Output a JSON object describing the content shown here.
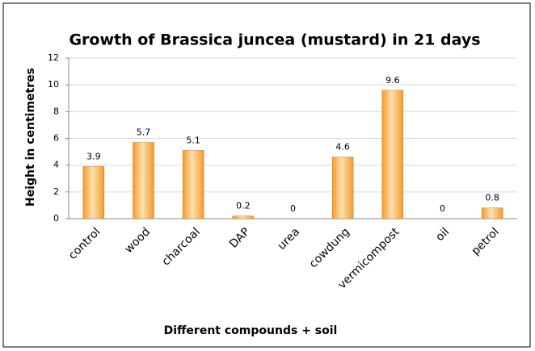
{
  "chart_data": {
    "type": "bar",
    "title": "Growth of Brassica juncea (mustard) in 21 days",
    "x_label": "Different compounds + soil",
    "y_label": "Height  in centimetres",
    "categories": [
      "control",
      "wood",
      "charcoal",
      "DAP",
      "urea",
      "cowdung",
      "vermicompost",
      "oil",
      "petrol"
    ],
    "values": [
      3.9,
      5.7,
      5.1,
      0.2,
      0,
      4.6,
      9.6,
      0,
      0.8
    ],
    "color": "#f29b2b",
    "ylim": [
      0,
      12
    ],
    "yticks": [
      0,
      2,
      4,
      6,
      8,
      10,
      12
    ],
    "grid": true
  }
}
